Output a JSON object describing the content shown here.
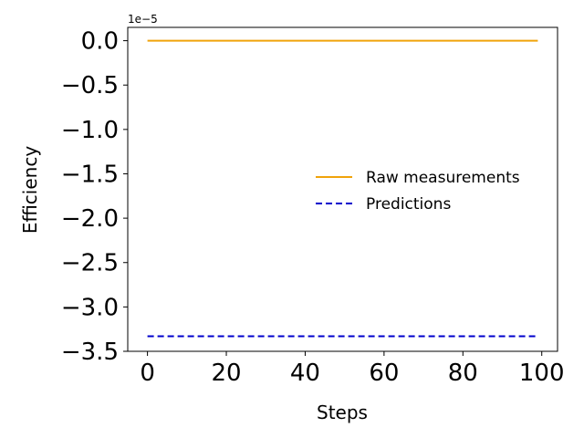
{
  "chart_data": {
    "type": "line",
    "xlabel": "Steps",
    "ylabel": "Efficiency",
    "y_offset_label": "1e−5",
    "xlim": [
      -5,
      104
    ],
    "ylim": [
      -3.5,
      0.15
    ],
    "xticks": [
      0,
      20,
      40,
      60,
      80,
      100
    ],
    "yticks": [
      0.0,
      -0.5,
      -1.0,
      -1.5,
      -2.0,
      -2.5,
      -3.0,
      -3.5
    ],
    "ytick_labels": [
      "0.0",
      "−0.5",
      "−1.0",
      "−1.5",
      "−2.0",
      "−2.5",
      "−3.0",
      "−3.5"
    ],
    "grid": false,
    "legend_placement": "center-right",
    "series": [
      {
        "name": "Raw measurements",
        "style": "solid",
        "color": "#f0a30a",
        "x": [
          0,
          99
        ],
        "y": [
          0.0,
          0.0
        ]
      },
      {
        "name": "Predictions",
        "style": "dashed",
        "color": "#0000cc",
        "x": [
          0,
          99
        ],
        "y": [
          -3.33,
          -3.33
        ]
      }
    ]
  }
}
